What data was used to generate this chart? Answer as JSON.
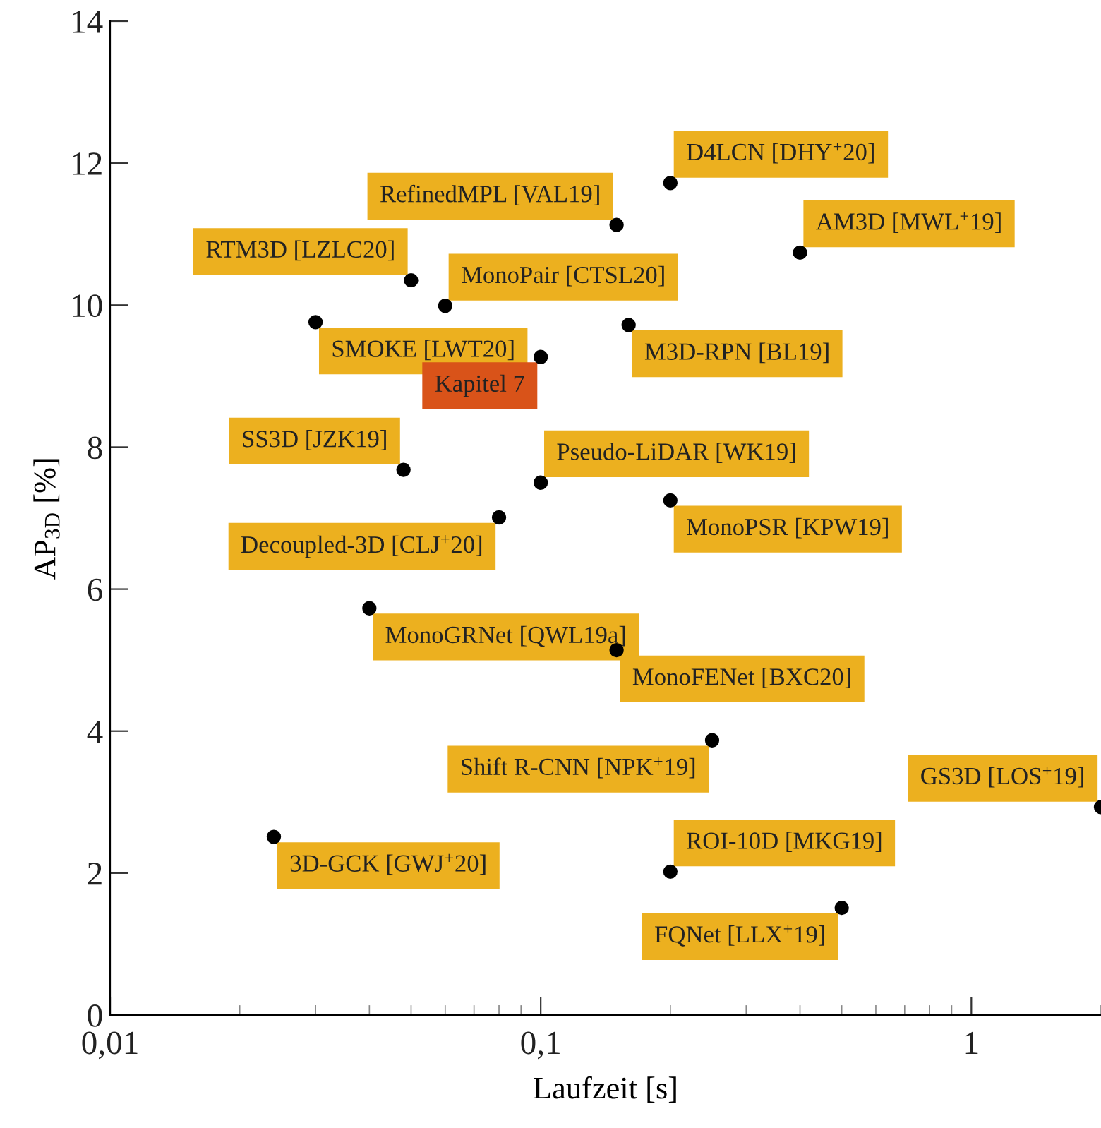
{
  "chart_data": {
    "type": "scatter",
    "xlabel": "Laufzeit [s]",
    "ylabel": "AP$_{3D}$ [%]",
    "log": "x",
    "xlim": [
      0.01,
      2
    ],
    "xticks": [
      {
        "value": 0.01,
        "label": "0,01"
      },
      {
        "value": 0.1,
        "label": "0,1"
      },
      1
    ],
    "ylim": [
      0,
      14
    ],
    "yticks": [
      0,
      2,
      4,
      6,
      8,
      10,
      12,
      14
    ],
    "grid": false,
    "legend": false,
    "marker": "circle",
    "series": [
      {
        "color": "#000000",
        "x": [
          0.2,
          0.15,
          0.4,
          0.05,
          0.06,
          0.03,
          0.16,
          0.1,
          0.048,
          0.1,
          0.2,
          0.08,
          0.04,
          0.15,
          0.25,
          2.0,
          0.024,
          0.2,
          0.5
        ],
        "values": [
          11.72,
          11.13,
          10.74,
          10.35,
          9.99,
          9.76,
          9.72,
          9.27,
          7.68,
          7.5,
          7.25,
          7.01,
          5.73,
          5.14,
          3.87,
          2.93,
          2.51,
          2.02,
          1.51
        ]
      }
    ],
    "annotations": [
      {
        "text": "D4LCN [DHY$^{+}$20]",
        "x": 0.2,
        "y": 11.72
      },
      {
        "text": "RefinedMPL [VAL19]",
        "x": 0.15,
        "y": 11.13
      },
      {
        "text": "AM3D [MWL$^{+}$19]",
        "x": 0.4,
        "y": 10.74
      },
      {
        "text": "RTM3D [LZLC20]",
        "x": 0.05,
        "y": 10.35
      },
      {
        "text": "MonoPair [CTSL20]",
        "x": 0.06,
        "y": 9.99
      },
      {
        "text": "SMOKE [LWT20]",
        "x": 0.03,
        "y": 9.76
      },
      {
        "text": "M3D-RPN [BL19]",
        "x": 0.16,
        "y": 9.72
      },
      {
        "text": "Kapitel 7",
        "x": 0.1,
        "y": 9.27
      },
      {
        "text": "SS3D [JZK19]",
        "x": 0.048,
        "y": 7.68
      },
      {
        "text": "Pseudo-LiDAR [WK19]",
        "x": 0.1,
        "y": 7.5
      },
      {
        "text": "MonoPSR [KPW19]",
        "x": 0.2,
        "y": 7.25
      },
      {
        "text": "Decoupled-3D [CLJ$^{+}$20]",
        "x": 0.08,
        "y": 7.01
      },
      {
        "text": "MonoGRNet [QWL19a]",
        "x": 0.04,
        "y": 5.73
      },
      {
        "text": "MonoFENet [BXC20]",
        "x": 0.15,
        "y": 5.14
      },
      {
        "text": "Shift R-CNN [NPK$^{+}$19]",
        "x": 0.25,
        "y": 3.87
      },
      {
        "text": "GS3D [LOS$^{+}$19]",
        "x": 2.0,
        "y": 2.93
      },
      {
        "text": "3D-GCK [GWJ$^{+}$20]",
        "x": 0.024,
        "y": 2.51
      },
      {
        "text": "ROI-10D [MKG19]",
        "x": 0.2,
        "y": 2.02
      },
      {
        "text": "FQNet [LLX$^{+}$19]",
        "x": 0.5,
        "y": 1.51
      }
    ]
  }
}
